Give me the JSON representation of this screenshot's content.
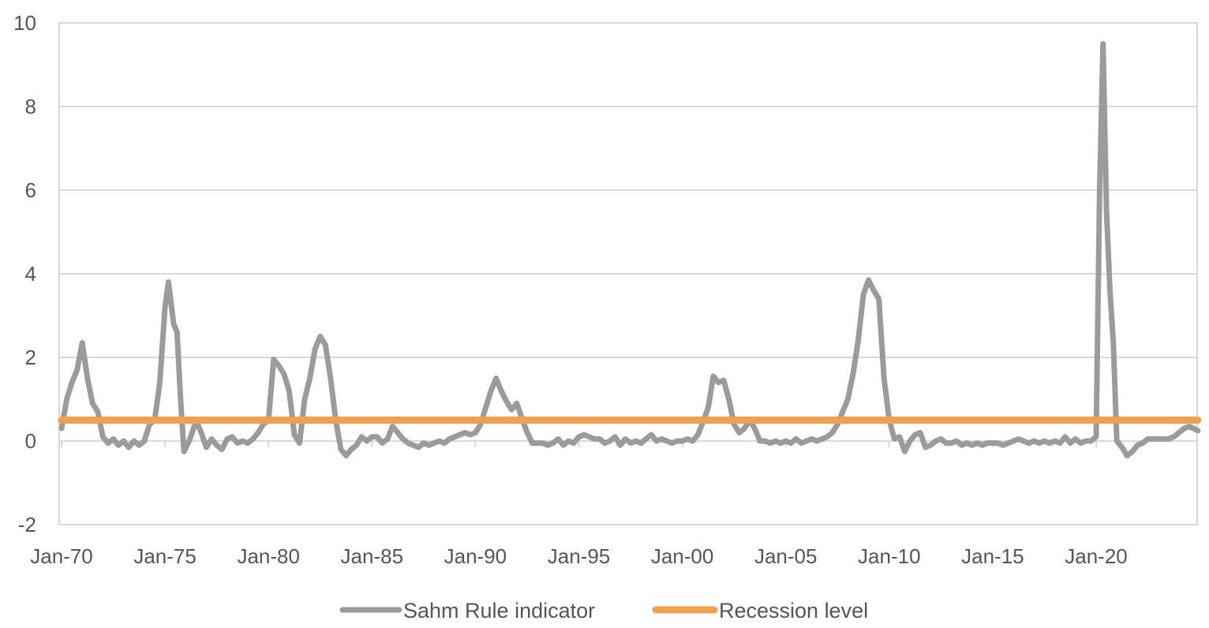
{
  "chart_data": {
    "type": "line",
    "title": "",
    "xlabel": "",
    "ylabel": "",
    "ylim": [
      -2,
      10
    ],
    "yticks": [
      -2,
      0,
      2,
      4,
      6,
      8,
      10
    ],
    "xlim": [
      "1970-01",
      "2024-12"
    ],
    "xticks": [
      {
        "label": "Jan-70",
        "date": "1970-01"
      },
      {
        "label": "Jan-75",
        "date": "1975-01"
      },
      {
        "label": "Jan-80",
        "date": "1980-01"
      },
      {
        "label": "Jan-85",
        "date": "1985-01"
      },
      {
        "label": "Jan-90",
        "date": "1990-01"
      },
      {
        "label": "Jan-95",
        "date": "1995-01"
      },
      {
        "label": "Jan-00",
        "date": "2000-01"
      },
      {
        "label": "Jan-05",
        "date": "2005-01"
      },
      {
        "label": "Jan-10",
        "date": "2010-01"
      },
      {
        "label": "Jan-15",
        "date": "2015-01"
      },
      {
        "label": "Jan-20",
        "date": "2020-01"
      }
    ],
    "grid": {
      "horizontal": true,
      "vertical": false
    },
    "legend_position": "bottom",
    "series": [
      {
        "name": "Sahm Rule indicator",
        "color": "#9b9b9b",
        "points": [
          [
            "1970-01",
            0.3
          ],
          [
            "1970-04",
            1.0
          ],
          [
            "1970-07",
            1.4
          ],
          [
            "1970-10",
            1.7
          ],
          [
            "1971-01",
            2.35
          ],
          [
            "1971-04",
            1.5
          ],
          [
            "1971-07",
            0.9
          ],
          [
            "1971-10",
            0.7
          ],
          [
            "1972-01",
            0.1
          ],
          [
            "1972-04",
            -0.05
          ],
          [
            "1972-07",
            0.05
          ],
          [
            "1972-10",
            -0.1
          ],
          [
            "1973-01",
            0.0
          ],
          [
            "1973-04",
            -0.15
          ],
          [
            "1973-07",
            0.0
          ],
          [
            "1973-10",
            -0.1
          ],
          [
            "1974-01",
            0.0
          ],
          [
            "1974-04",
            0.4
          ],
          [
            "1974-07",
            0.5
          ],
          [
            "1974-10",
            1.4
          ],
          [
            "1975-01",
            3.2
          ],
          [
            "1975-03",
            3.8
          ],
          [
            "1975-06",
            2.8
          ],
          [
            "1975-08",
            2.6
          ],
          [
            "1975-10",
            1.0
          ],
          [
            "1975-12",
            -0.25
          ],
          [
            "1976-03",
            0.0
          ],
          [
            "1976-06",
            0.35
          ],
          [
            "1976-08",
            0.4
          ],
          [
            "1976-10",
            0.2
          ],
          [
            "1977-01",
            -0.15
          ],
          [
            "1977-04",
            0.05
          ],
          [
            "1977-07",
            -0.1
          ],
          [
            "1977-10",
            -0.2
          ],
          [
            "1978-01",
            0.05
          ],
          [
            "1978-04",
            0.1
          ],
          [
            "1978-07",
            -0.05
          ],
          [
            "1978-10",
            0.0
          ],
          [
            "1979-01",
            -0.05
          ],
          [
            "1979-04",
            0.05
          ],
          [
            "1979-07",
            0.2
          ],
          [
            "1979-10",
            0.4
          ],
          [
            "1980-01",
            0.5
          ],
          [
            "1980-04",
            1.95
          ],
          [
            "1980-07",
            1.8
          ],
          [
            "1980-10",
            1.6
          ],
          [
            "1981-01",
            1.2
          ],
          [
            "1981-04",
            0.15
          ],
          [
            "1981-07",
            -0.05
          ],
          [
            "1981-10",
            1.0
          ],
          [
            "1982-01",
            1.5
          ],
          [
            "1982-04",
            2.2
          ],
          [
            "1982-07",
            2.5
          ],
          [
            "1982-10",
            2.3
          ],
          [
            "1983-01",
            1.5
          ],
          [
            "1983-04",
            0.5
          ],
          [
            "1983-07",
            -0.2
          ],
          [
            "1983-10",
            -0.35
          ],
          [
            "1984-01",
            -0.2
          ],
          [
            "1984-04",
            -0.1
          ],
          [
            "1984-07",
            0.1
          ],
          [
            "1984-10",
            0.0
          ],
          [
            "1985-01",
            0.1
          ],
          [
            "1985-04",
            0.1
          ],
          [
            "1985-07",
            -0.05
          ],
          [
            "1985-10",
            0.05
          ],
          [
            "1986-01",
            0.35
          ],
          [
            "1986-04",
            0.2
          ],
          [
            "1986-07",
            0.05
          ],
          [
            "1986-10",
            -0.05
          ],
          [
            "1987-01",
            -0.1
          ],
          [
            "1987-04",
            -0.15
          ],
          [
            "1987-07",
            -0.05
          ],
          [
            "1987-10",
            -0.1
          ],
          [
            "1988-01",
            -0.05
          ],
          [
            "1988-04",
            0.0
          ],
          [
            "1988-07",
            -0.05
          ],
          [
            "1988-10",
            0.05
          ],
          [
            "1989-01",
            0.1
          ],
          [
            "1989-04",
            0.15
          ],
          [
            "1989-07",
            0.2
          ],
          [
            "1989-10",
            0.15
          ],
          [
            "1990-01",
            0.2
          ],
          [
            "1990-04",
            0.4
          ],
          [
            "1990-07",
            0.8
          ],
          [
            "1990-10",
            1.2
          ],
          [
            "1991-01",
            1.5
          ],
          [
            "1991-04",
            1.2
          ],
          [
            "1991-07",
            0.95
          ],
          [
            "1991-10",
            0.75
          ],
          [
            "1992-01",
            0.9
          ],
          [
            "1992-04",
            0.55
          ],
          [
            "1992-07",
            0.2
          ],
          [
            "1992-10",
            -0.05
          ],
          [
            "1993-01",
            -0.05
          ],
          [
            "1993-04",
            -0.05
          ],
          [
            "1993-07",
            -0.1
          ],
          [
            "1993-10",
            -0.05
          ],
          [
            "1994-01",
            0.05
          ],
          [
            "1994-04",
            -0.1
          ],
          [
            "1994-07",
            0.0
          ],
          [
            "1994-10",
            -0.05
          ],
          [
            "1995-01",
            0.1
          ],
          [
            "1995-04",
            0.15
          ],
          [
            "1995-07",
            0.1
          ],
          [
            "1995-10",
            0.05
          ],
          [
            "1996-01",
            0.05
          ],
          [
            "1996-04",
            -0.05
          ],
          [
            "1996-07",
            0.0
          ],
          [
            "1996-10",
            0.1
          ],
          [
            "1997-01",
            -0.1
          ],
          [
            "1997-04",
            0.05
          ],
          [
            "1997-07",
            -0.05
          ],
          [
            "1997-10",
            0.0
          ],
          [
            "1998-01",
            -0.05
          ],
          [
            "1998-04",
            0.05
          ],
          [
            "1998-07",
            0.15
          ],
          [
            "1998-10",
            0.0
          ],
          [
            "1999-01",
            0.05
          ],
          [
            "1999-04",
            0.0
          ],
          [
            "1999-07",
            -0.05
          ],
          [
            "1999-10",
            0.0
          ],
          [
            "2000-01",
            0.0
          ],
          [
            "2000-04",
            0.05
          ],
          [
            "2000-07",
            0.0
          ],
          [
            "2000-10",
            0.15
          ],
          [
            "2001-01",
            0.45
          ],
          [
            "2001-04",
            0.8
          ],
          [
            "2001-07",
            1.55
          ],
          [
            "2001-10",
            1.4
          ],
          [
            "2002-01",
            1.45
          ],
          [
            "2002-04",
            1.0
          ],
          [
            "2002-07",
            0.4
          ],
          [
            "2002-10",
            0.2
          ],
          [
            "2003-01",
            0.3
          ],
          [
            "2003-04",
            0.5
          ],
          [
            "2003-07",
            0.3
          ],
          [
            "2003-10",
            0.0
          ],
          [
            "2004-01",
            0.0
          ],
          [
            "2004-04",
            -0.05
          ],
          [
            "2004-07",
            0.0
          ],
          [
            "2004-10",
            -0.05
          ],
          [
            "2005-01",
            0.0
          ],
          [
            "2005-04",
            -0.05
          ],
          [
            "2005-07",
            0.05
          ],
          [
            "2005-10",
            -0.05
          ],
          [
            "2006-01",
            0.0
          ],
          [
            "2006-04",
            0.05
          ],
          [
            "2006-07",
            0.0
          ],
          [
            "2006-10",
            0.05
          ],
          [
            "2007-01",
            0.1
          ],
          [
            "2007-04",
            0.2
          ],
          [
            "2007-07",
            0.4
          ],
          [
            "2007-10",
            0.7
          ],
          [
            "2008-01",
            1.0
          ],
          [
            "2008-04",
            1.6
          ],
          [
            "2008-07",
            2.4
          ],
          [
            "2008-10",
            3.5
          ],
          [
            "2009-01",
            3.85
          ],
          [
            "2009-04",
            3.6
          ],
          [
            "2009-07",
            3.4
          ],
          [
            "2009-10",
            1.5
          ],
          [
            "2010-01",
            0.5
          ],
          [
            "2010-04",
            0.05
          ],
          [
            "2010-07",
            0.1
          ],
          [
            "2010-10",
            -0.25
          ],
          [
            "2011-01",
            0.0
          ],
          [
            "2011-04",
            0.15
          ],
          [
            "2011-07",
            0.2
          ],
          [
            "2011-10",
            -0.15
          ],
          [
            "2012-01",
            -0.1
          ],
          [
            "2012-04",
            0.0
          ],
          [
            "2012-07",
            0.05
          ],
          [
            "2012-10",
            -0.05
          ],
          [
            "2013-01",
            -0.05
          ],
          [
            "2013-04",
            0.0
          ],
          [
            "2013-07",
            -0.1
          ],
          [
            "2013-10",
            -0.05
          ],
          [
            "2014-01",
            -0.1
          ],
          [
            "2014-04",
            -0.05
          ],
          [
            "2014-07",
            -0.1
          ],
          [
            "2014-10",
            -0.05
          ],
          [
            "2015-01",
            -0.05
          ],
          [
            "2015-04",
            -0.05
          ],
          [
            "2015-07",
            -0.1
          ],
          [
            "2015-10",
            -0.05
          ],
          [
            "2016-01",
            0.0
          ],
          [
            "2016-04",
            0.05
          ],
          [
            "2016-07",
            0.0
          ],
          [
            "2016-10",
            -0.05
          ],
          [
            "2017-01",
            0.0
          ],
          [
            "2017-04",
            -0.05
          ],
          [
            "2017-07",
            0.0
          ],
          [
            "2017-10",
            -0.05
          ],
          [
            "2018-01",
            0.0
          ],
          [
            "2018-04",
            -0.05
          ],
          [
            "2018-07",
            0.1
          ],
          [
            "2018-10",
            -0.05
          ],
          [
            "2019-01",
            0.05
          ],
          [
            "2019-04",
            -0.05
          ],
          [
            "2019-07",
            0.0
          ],
          [
            "2019-10",
            0.0
          ],
          [
            "2020-01",
            0.1
          ],
          [
            "2020-03",
            6.0
          ],
          [
            "2020-05",
            9.5
          ],
          [
            "2020-07",
            5.5
          ],
          [
            "2020-09",
            3.6
          ],
          [
            "2020-11",
            2.3
          ],
          [
            "2021-01",
            0.0
          ],
          [
            "2021-04",
            -0.15
          ],
          [
            "2021-07",
            -0.35
          ],
          [
            "2021-10",
            -0.25
          ],
          [
            "2022-01",
            -0.1
          ],
          [
            "2022-04",
            -0.05
          ],
          [
            "2022-07",
            0.05
          ],
          [
            "2022-10",
            0.05
          ],
          [
            "2023-01",
            0.05
          ],
          [
            "2023-04",
            0.05
          ],
          [
            "2023-07",
            0.05
          ],
          [
            "2023-10",
            0.1
          ],
          [
            "2024-01",
            0.2
          ],
          [
            "2024-04",
            0.3
          ],
          [
            "2024-07",
            0.35
          ],
          [
            "2024-12",
            0.25
          ]
        ]
      },
      {
        "name": "Recession level",
        "color": "#f4a04a",
        "points": [
          [
            "1970-01",
            0.5
          ],
          [
            "2024-12",
            0.5
          ]
        ]
      }
    ],
    "axis": {
      "line_color": "#d9d9d9",
      "grid_color": "#d9d9d9",
      "tick_label_color": "#555555"
    }
  }
}
